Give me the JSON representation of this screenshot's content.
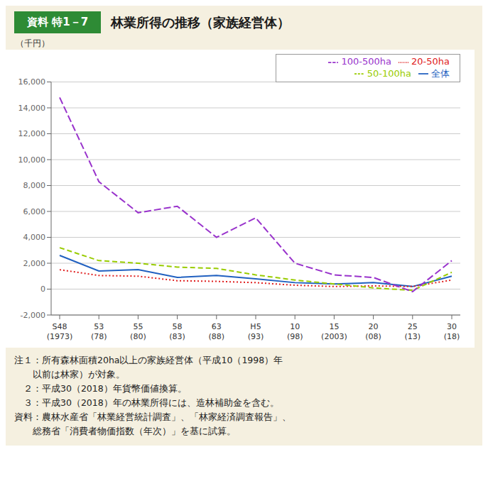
{
  "chart_data": {
    "type": "line",
    "subtitle": "資料 特1－7",
    "title": "林業所得の推移（家族経営体）",
    "ylabel": "（千円）",
    "categories": [
      "S48\n(1973)",
      "53\n(78)",
      "55\n(80)",
      "58\n(83)",
      "63\n(88)",
      "H5\n(93)",
      "10\n(98)",
      "15\n(2003)",
      "20\n(08)",
      "25\n(13)",
      "30\n(18)"
    ],
    "ylim": [
      -2000,
      16000
    ],
    "yticks": [
      {
        "value": -2000,
        "label": "-2,000"
      },
      0,
      {
        "value": 2000,
        "label": "2,000"
      },
      {
        "value": 4000,
        "label": "4,000"
      },
      {
        "value": 6000,
        "label": "6,000"
      },
      {
        "value": 8000,
        "label": "8,000"
      },
      {
        "value": 10000,
        "label": "10,000"
      },
      {
        "value": 12000,
        "label": "12,000"
      },
      {
        "value": 14000,
        "label": "14,000"
      },
      {
        "value": 16000,
        "label": "16,000"
      }
    ],
    "grid": true,
    "legend": "upper right",
    "series": [
      {
        "name": "全体",
        "color": "#2060c0",
        "line_style": "solid",
        "values": [
          2600,
          1400,
          1500,
          900,
          1050,
          800,
          500,
          400,
          500,
          200,
          1000
        ]
      },
      {
        "name": "20-50ha",
        "color": "#e02020",
        "line_style": "dotted",
        "values": [
          1500,
          1050,
          1000,
          650,
          600,
          500,
          300,
          200,
          250,
          200,
          700
        ]
      },
      {
        "name": "50-100ha",
        "color": "#99cc00",
        "line_style": "dashed",
        "values": [
          3200,
          2200,
          2000,
          1700,
          1600,
          1100,
          700,
          400,
          100,
          -100,
          1300
        ]
      },
      {
        "name": "100-500ha",
        "color": "#9933cc",
        "line_style": "longdash",
        "values": [
          14800,
          8300,
          5900,
          6400,
          4000,
          5500,
          2000,
          1100,
          900,
          -200,
          2200
        ]
      }
    ],
    "annotations": [
      "注１：所有森林面積20ha以上の家族経営体（平成10（1998）年",
      "　　以前は林家）が対象。",
      "　２：平成30（2018）年貨幣価値換算。",
      "　３：平成30（2018）年の林業所得には、造林補助金を含む。",
      "資料：農林水産省「林業経営統計調査」、「林家経済調査報告」、",
      "　　総務省「消費者物価指数（年次）」を基に試算。"
    ]
  }
}
